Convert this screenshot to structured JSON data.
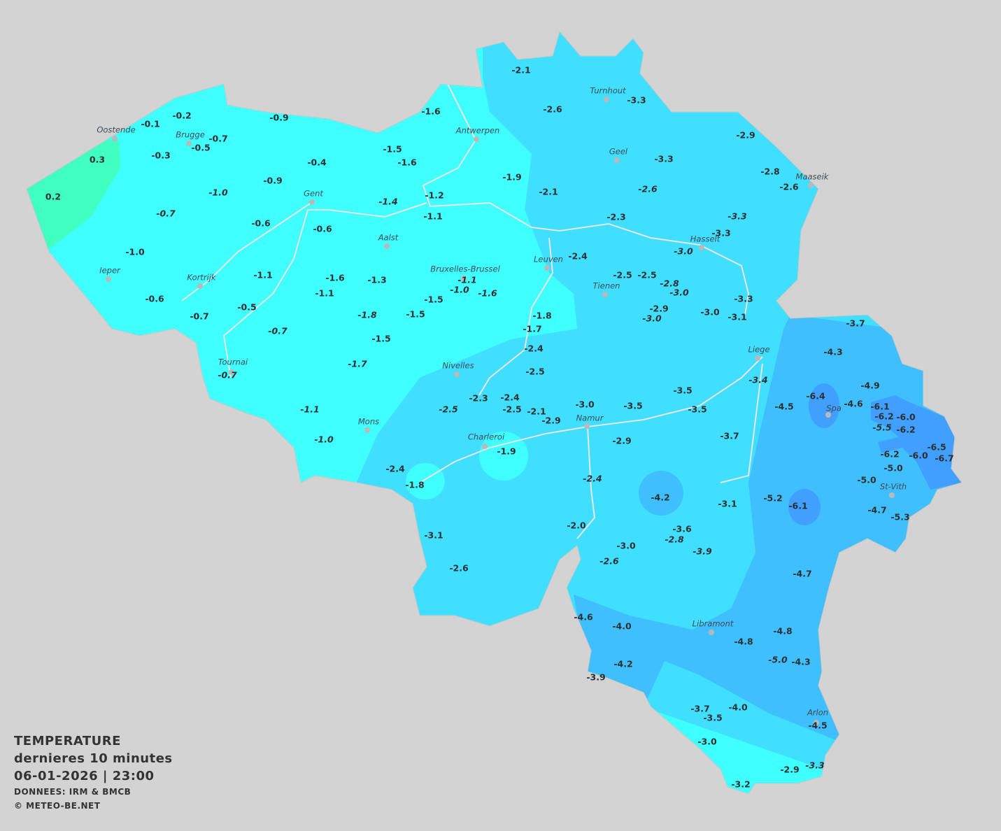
{
  "legend": {
    "title": "TEMPERATURE",
    "period": "dernieres 10 minutes",
    "datetime": "06-01-2026  |  23:00",
    "source": "DONNEES: IRM & BMCB",
    "copyright": "© METEO-BE.NET"
  },
  "colors": {
    "background": "#d3d3d3",
    "band_0_to_1": "#40ffc0",
    "band_m2_to_0": "#40ffff",
    "band_m4_to_m2": "#40dfff",
    "band_m6_to_m4": "#40bfff",
    "band_below_m6": "#409fff",
    "values": "#2a2f33",
    "rivers": "#e8e8e8"
  },
  "cities": [
    "Oostende",
    "Brugge",
    "Gent",
    "Antwerpen",
    "Turnhout",
    "Geel",
    "Maaseik",
    "Hasselt",
    "Leuven",
    "Tienen",
    "Aalst",
    "Bruxelles-Brussel",
    "Ieper",
    "Kortrijk",
    "Tournai",
    "Nivelles",
    "Mons",
    "Charleroi",
    "Namur",
    "Liege",
    "Spa",
    "St-Vith",
    "Libramont",
    "Arlon"
  ],
  "stations": [
    {
      "v": "-0.1"
    },
    {
      "v": "-0.2"
    },
    {
      "v": "0.3"
    },
    {
      "v": "0.2"
    },
    {
      "v": "-0.3"
    },
    {
      "v": "-0.7"
    },
    {
      "v": "-0.5"
    },
    {
      "v": "-0.9"
    },
    {
      "v": "-0.4"
    },
    {
      "v": "-0.9"
    },
    {
      "v": "-1.0",
      "italic": true
    },
    {
      "v": "-0.7",
      "italic": true
    },
    {
      "v": "-0.6"
    },
    {
      "v": "-0.6"
    },
    {
      "v": "-1.0"
    },
    {
      "v": "-0.6"
    },
    {
      "v": "-1.1"
    },
    {
      "v": "-0.7"
    },
    {
      "v": "-0.5"
    },
    {
      "v": "-0.7",
      "italic": true
    },
    {
      "v": "-0.7",
      "italic": true
    },
    {
      "v": "-1.6"
    },
    {
      "v": "-1.1"
    },
    {
      "v": "-1.3"
    },
    {
      "v": "-1.8",
      "italic": true
    },
    {
      "v": "-1.5"
    },
    {
      "v": "-1.5"
    },
    {
      "v": "-1.5"
    },
    {
      "v": "-1.7",
      "italic": true
    },
    {
      "v": "-1.1",
      "italic": true
    },
    {
      "v": "-1.0",
      "italic": true
    },
    {
      "v": "-1.6"
    },
    {
      "v": "-1.5"
    },
    {
      "v": "-1.6"
    },
    {
      "v": "-1.4",
      "italic": true
    },
    {
      "v": "-1.2"
    },
    {
      "v": "-1.1"
    },
    {
      "v": "-1.1",
      "italic": true
    },
    {
      "v": "-1.0",
      "italic": true
    },
    {
      "v": "-1.6",
      "italic": true
    },
    {
      "v": "-1.8"
    },
    {
      "v": "-1.7"
    },
    {
      "v": "-2.4"
    },
    {
      "v": "-2.5"
    },
    {
      "v": "-2.3"
    },
    {
      "v": "-2.4"
    },
    {
      "v": "-2.5",
      "italic": true
    },
    {
      "v": "-2.5"
    },
    {
      "v": "-2.1"
    },
    {
      "v": "-2.9"
    },
    {
      "v": "-3.0"
    },
    {
      "v": "-3.5"
    },
    {
      "v": "-3.5"
    },
    {
      "v": "-3.5"
    },
    {
      "v": "-1.9"
    },
    {
      "v": "-2.4"
    },
    {
      "v": "-1.8"
    },
    {
      "v": "-3.1"
    },
    {
      "v": "-2.6"
    },
    {
      "v": "-2.4",
      "italic": true
    },
    {
      "v": "-2.0"
    },
    {
      "v": "-2.9"
    },
    {
      "v": "-4.2"
    },
    {
      "v": "-3.0"
    },
    {
      "v": "-3.6"
    },
    {
      "v": "-2.8",
      "italic": true
    },
    {
      "v": "-3.9",
      "italic": true
    },
    {
      "v": "-2.6",
      "italic": true
    },
    {
      "v": "-3.7"
    },
    {
      "v": "-3.1"
    },
    {
      "v": "-2.1"
    },
    {
      "v": "-2.6"
    },
    {
      "v": "-3.3"
    },
    {
      "v": "-2.9"
    },
    {
      "v": "-3.3"
    },
    {
      "v": "-2.6",
      "italic": true
    },
    {
      "v": "-2.8"
    },
    {
      "v": "-2.6"
    },
    {
      "v": "-1.9"
    },
    {
      "v": "-2.1"
    },
    {
      "v": "-2.3"
    },
    {
      "v": "-3.3",
      "italic": true
    },
    {
      "v": "-3.3"
    },
    {
      "v": "-3.0",
      "italic": true
    },
    {
      "v": "-2.4"
    },
    {
      "v": "-2.5"
    },
    {
      "v": "-2.5"
    },
    {
      "v": "-2.8",
      "italic": true
    },
    {
      "v": "-3.0",
      "italic": true
    },
    {
      "v": "-2.9"
    },
    {
      "v": "-3.0",
      "italic": true
    },
    {
      "v": "-3.0"
    },
    {
      "v": "-3.3"
    },
    {
      "v": "-3.1"
    },
    {
      "v": "-3.7"
    },
    {
      "v": "-4.3"
    },
    {
      "v": "-3.4",
      "italic": true
    },
    {
      "v": "-4.5"
    },
    {
      "v": "-6.4"
    },
    {
      "v": "-4.6"
    },
    {
      "v": "-4.9"
    },
    {
      "v": "-6.1"
    },
    {
      "v": "-6.2"
    },
    {
      "v": "-6.0"
    },
    {
      "v": "-5.5",
      "italic": true
    },
    {
      "v": "-6.2"
    },
    {
      "v": "-6.2"
    },
    {
      "v": "-6.0"
    },
    {
      "v": "-6.5"
    },
    {
      "v": "-6.7"
    },
    {
      "v": "-5.0"
    },
    {
      "v": "-5.0"
    },
    {
      "v": "-5.2"
    },
    {
      "v": "-6.1"
    },
    {
      "v": "-4.7"
    },
    {
      "v": "-5.3"
    },
    {
      "v": "-4.7"
    },
    {
      "v": "-4.6"
    },
    {
      "v": "-4.0"
    },
    {
      "v": "-4.8"
    },
    {
      "v": "-4.8"
    },
    {
      "v": "-5.0",
      "italic": true
    },
    {
      "v": "-4.3"
    },
    {
      "v": "-4.2"
    },
    {
      "v": "-3.9"
    },
    {
      "v": "-3.7"
    },
    {
      "v": "-4.0"
    },
    {
      "v": "-3.5"
    },
    {
      "v": "-4.5"
    },
    {
      "v": "-3.0"
    },
    {
      "v": "-2.9"
    },
    {
      "v": "-3.3",
      "italic": true
    },
    {
      "v": "-3.2"
    }
  ]
}
